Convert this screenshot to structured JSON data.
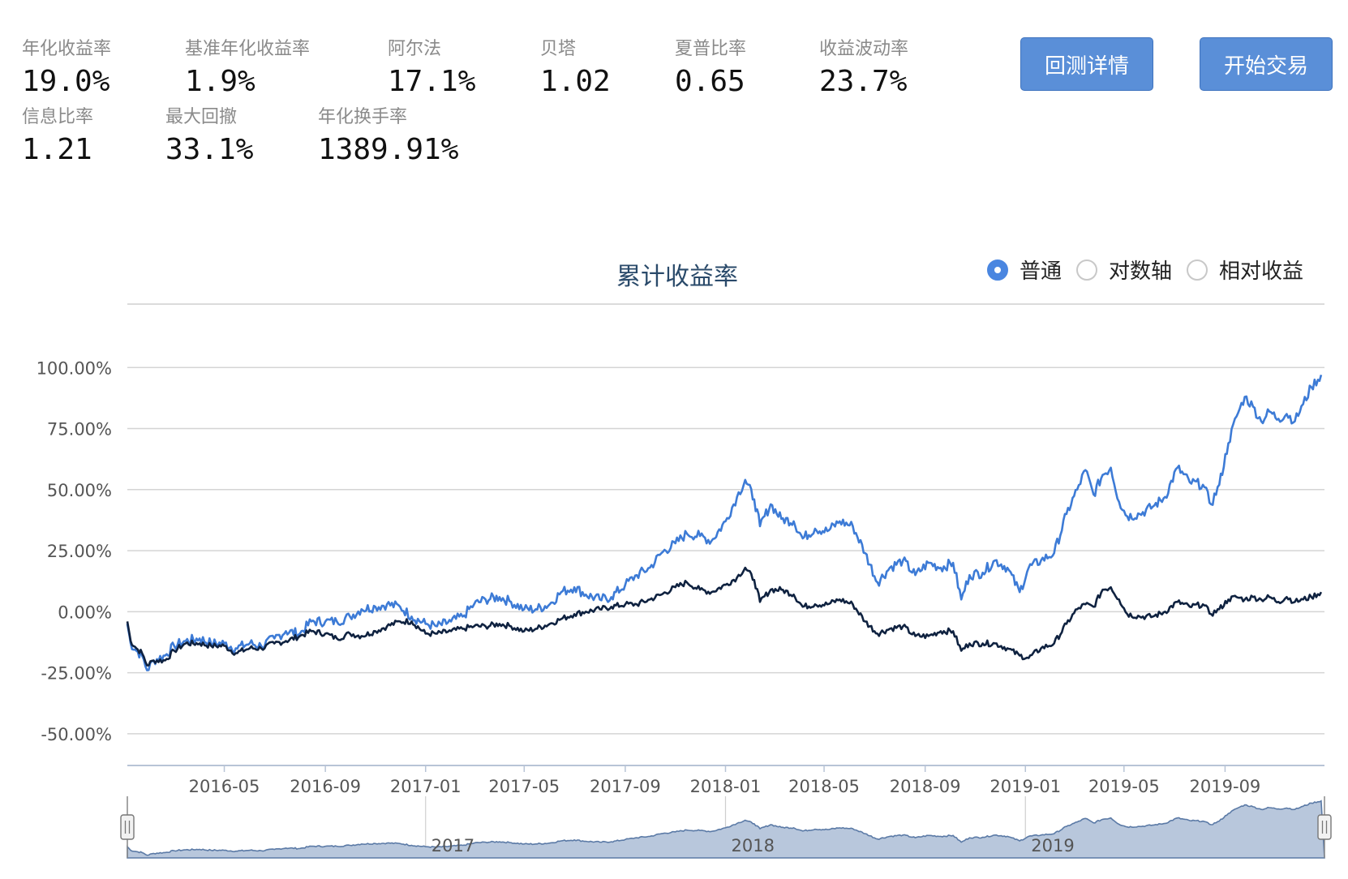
{
  "metrics_row1": [
    {
      "label": "年化收益率",
      "value": "19.0%"
    },
    {
      "label": "基准年化收益率",
      "value": "1.9%"
    },
    {
      "label": "阿尔法",
      "value": "17.1%"
    },
    {
      "label": "贝塔",
      "value": "1.02"
    },
    {
      "label": "夏普比率",
      "value": "0.65"
    },
    {
      "label": "收益波动率",
      "value": "23.7%"
    }
  ],
  "metrics_row2": [
    {
      "label": "信息比率",
      "value": "1.21"
    },
    {
      "label": "最大回撤",
      "value": "33.1%"
    },
    {
      "label": "年化换手率",
      "value": "1389.91%"
    }
  ],
  "buttons": {
    "backtest_details": "回测详情",
    "start_trading": "开始交易"
  },
  "scale_options": [
    {
      "label": "普通",
      "checked": true
    },
    {
      "label": "对数轴",
      "checked": false
    },
    {
      "label": "相对收益",
      "checked": false
    }
  ],
  "colors": {
    "strategy": "#3d7bd6",
    "benchmark": "#0f2240",
    "grid": "#d4d4d4",
    "navigator_fill": "#b8c7dc",
    "navigator_line": "#5b7aa6"
  },
  "chart_data": {
    "type": "line",
    "title": "累计收益率",
    "y_ticks": [
      "100.00%",
      "75.00%",
      "50.00%",
      "25.00%",
      "0.00%",
      "-25.00%",
      "-50.00%"
    ],
    "y_tick_values": [
      100,
      75,
      50,
      25,
      0,
      -25,
      -50
    ],
    "ylim": [
      -63,
      126
    ],
    "x_ticks": [
      {
        "label": "2016-05",
        "date": "2016-05-01"
      },
      {
        "label": "2016-09",
        "date": "2016-09-01"
      },
      {
        "label": "2017-01",
        "date": "2017-01-01"
      },
      {
        "label": "2017-05",
        "date": "2017-05-01"
      },
      {
        "label": "2017-09",
        "date": "2017-09-01"
      },
      {
        "label": "2018-01",
        "date": "2018-01-01"
      },
      {
        "label": "2018-05",
        "date": "2018-05-01"
      },
      {
        "label": "2018-09",
        "date": "2018-09-01"
      },
      {
        "label": "2019-01",
        "date": "2019-01-01"
      },
      {
        "label": "2019-05",
        "date": "2019-05-01"
      },
      {
        "label": "2019-09",
        "date": "2019-09-01"
      }
    ],
    "navigator_ticks": [
      {
        "label": "2017",
        "date": "2017-01-01"
      },
      {
        "label": "2018",
        "date": "2018-01-01"
      },
      {
        "label": "2019",
        "date": "2019-01-01"
      }
    ],
    "series": [
      {
        "color_key": "strategy",
        "points": [
          [
            "2016-01-04",
            -5
          ],
          [
            "2016-01-08",
            -13
          ],
          [
            "2016-01-15",
            -16
          ],
          [
            "2016-01-22",
            -18
          ],
          [
            "2016-01-28",
            -24
          ],
          [
            "2016-02-05",
            -20
          ],
          [
            "2016-02-19",
            -18
          ],
          [
            "2016-03-01",
            -14
          ],
          [
            "2016-03-15",
            -12
          ],
          [
            "2016-04-01",
            -11
          ],
          [
            "2016-04-15",
            -13
          ],
          [
            "2016-05-01",
            -13
          ],
          [
            "2016-05-15",
            -15
          ],
          [
            "2016-06-01",
            -13
          ],
          [
            "2016-06-15",
            -14
          ],
          [
            "2016-07-01",
            -11
          ],
          [
            "2016-07-15",
            -8
          ],
          [
            "2016-08-01",
            -9
          ],
          [
            "2016-08-15",
            -4
          ],
          [
            "2016-09-01",
            -4
          ],
          [
            "2016-09-15",
            -4
          ],
          [
            "2016-10-01",
            -2
          ],
          [
            "2016-10-15",
            1
          ],
          [
            "2016-11-01",
            2
          ],
          [
            "2016-11-15",
            3
          ],
          [
            "2016-12-01",
            2
          ],
          [
            "2016-12-15",
            -2
          ],
          [
            "2017-01-01",
            -5
          ],
          [
            "2017-01-15",
            -6
          ],
          [
            "2017-02-01",
            -4
          ],
          [
            "2017-02-15",
            -2
          ],
          [
            "2017-03-01",
            3
          ],
          [
            "2017-03-15",
            5
          ],
          [
            "2017-04-01",
            6
          ],
          [
            "2017-04-15",
            4
          ],
          [
            "2017-05-01",
            1
          ],
          [
            "2017-05-15",
            1
          ],
          [
            "2017-06-01",
            3
          ],
          [
            "2017-06-15",
            8
          ],
          [
            "2017-07-01",
            10
          ],
          [
            "2017-07-15",
            7
          ],
          [
            "2017-08-01",
            5
          ],
          [
            "2017-08-15",
            6
          ],
          [
            "2017-09-01",
            11
          ],
          [
            "2017-09-15",
            15
          ],
          [
            "2017-10-01",
            18
          ],
          [
            "2017-10-15",
            24
          ],
          [
            "2017-11-01",
            28
          ],
          [
            "2017-11-15",
            32
          ],
          [
            "2017-12-01",
            31
          ],
          [
            "2017-12-15",
            29
          ],
          [
            "2018-01-01",
            37
          ],
          [
            "2018-01-15",
            47
          ],
          [
            "2018-01-25",
            54
          ],
          [
            "2018-02-05",
            46
          ],
          [
            "2018-02-12",
            35
          ],
          [
            "2018-02-25",
            44
          ],
          [
            "2018-03-10",
            38
          ],
          [
            "2018-03-25",
            37
          ],
          [
            "2018-04-05",
            30
          ],
          [
            "2018-04-20",
            34
          ],
          [
            "2018-05-05",
            33
          ],
          [
            "2018-05-20",
            37
          ],
          [
            "2018-06-05",
            35
          ],
          [
            "2018-06-20",
            24
          ],
          [
            "2018-07-05",
            12
          ],
          [
            "2018-07-20",
            18
          ],
          [
            "2018-08-05",
            21
          ],
          [
            "2018-08-20",
            15
          ],
          [
            "2018-09-05",
            20
          ],
          [
            "2018-09-20",
            18
          ],
          [
            "2018-10-05",
            20
          ],
          [
            "2018-10-15",
            5
          ],
          [
            "2018-10-25",
            15
          ],
          [
            "2018-11-10",
            16
          ],
          [
            "2018-11-25",
            21
          ],
          [
            "2018-12-10",
            18
          ],
          [
            "2018-12-25",
            8
          ],
          [
            "2019-01-05",
            18
          ],
          [
            "2019-01-20",
            21
          ],
          [
            "2019-02-05",
            24
          ],
          [
            "2019-02-20",
            40
          ],
          [
            "2019-03-05",
            50
          ],
          [
            "2019-03-15",
            58
          ],
          [
            "2019-03-25",
            48
          ],
          [
            "2019-04-05",
            56
          ],
          [
            "2019-04-15",
            59
          ],
          [
            "2019-04-25",
            45
          ],
          [
            "2019-05-05",
            39
          ],
          [
            "2019-05-20",
            40
          ],
          [
            "2019-06-05",
            43
          ],
          [
            "2019-06-20",
            47
          ],
          [
            "2019-07-05",
            59
          ],
          [
            "2019-07-20",
            53
          ],
          [
            "2019-08-05",
            52
          ],
          [
            "2019-08-15",
            44
          ],
          [
            "2019-08-25",
            52
          ],
          [
            "2019-09-05",
            69
          ],
          [
            "2019-09-15",
            80
          ],
          [
            "2019-09-25",
            88
          ],
          [
            "2019-10-05",
            84
          ],
          [
            "2019-10-15",
            78
          ],
          [
            "2019-10-25",
            82
          ],
          [
            "2019-11-05",
            79
          ],
          [
            "2019-11-15",
            81
          ],
          [
            "2019-11-25",
            78
          ],
          [
            "2019-12-05",
            85
          ],
          [
            "2019-12-15",
            92
          ],
          [
            "2019-12-27",
            97
          ]
        ]
      },
      {
        "color_key": "benchmark",
        "points": [
          [
            "2016-01-04",
            -4
          ],
          [
            "2016-01-08",
            -12
          ],
          [
            "2016-01-15",
            -15
          ],
          [
            "2016-01-22",
            -17
          ],
          [
            "2016-01-28",
            -22
          ],
          [
            "2016-02-05",
            -20
          ],
          [
            "2016-02-19",
            -20
          ],
          [
            "2016-03-01",
            -16
          ],
          [
            "2016-03-15",
            -13
          ],
          [
            "2016-04-01",
            -13
          ],
          [
            "2016-04-15",
            -14
          ],
          [
            "2016-05-01",
            -14
          ],
          [
            "2016-05-15",
            -17
          ],
          [
            "2016-06-01",
            -15
          ],
          [
            "2016-06-15",
            -15
          ],
          [
            "2016-07-01",
            -13
          ],
          [
            "2016-07-15",
            -12
          ],
          [
            "2016-08-01",
            -10
          ],
          [
            "2016-08-15",
            -8
          ],
          [
            "2016-09-01",
            -9
          ],
          [
            "2016-09-15",
            -11
          ],
          [
            "2016-10-01",
            -9
          ],
          [
            "2016-10-15",
            -10
          ],
          [
            "2016-11-01",
            -8
          ],
          [
            "2016-11-15",
            -6
          ],
          [
            "2016-12-01",
            -4
          ],
          [
            "2016-12-15",
            -4
          ],
          [
            "2017-01-01",
            -9
          ],
          [
            "2017-01-15",
            -9
          ],
          [
            "2017-02-01",
            -8
          ],
          [
            "2017-02-15",
            -7
          ],
          [
            "2017-03-01",
            -6
          ],
          [
            "2017-03-15",
            -6
          ],
          [
            "2017-04-01",
            -5
          ],
          [
            "2017-04-15",
            -6
          ],
          [
            "2017-05-01",
            -8
          ],
          [
            "2017-05-15",
            -7
          ],
          [
            "2017-06-01",
            -5
          ],
          [
            "2017-06-15",
            -3
          ],
          [
            "2017-07-01",
            -1
          ],
          [
            "2017-07-15",
            0
          ],
          [
            "2017-08-01",
            1
          ],
          [
            "2017-08-15",
            2
          ],
          [
            "2017-09-01",
            3
          ],
          [
            "2017-09-15",
            3
          ],
          [
            "2017-10-01",
            5
          ],
          [
            "2017-10-15",
            7
          ],
          [
            "2017-11-01",
            10
          ],
          [
            "2017-11-15",
            12
          ],
          [
            "2017-12-01",
            9
          ],
          [
            "2017-12-15",
            8
          ],
          [
            "2018-01-01",
            11
          ],
          [
            "2018-01-15",
            14
          ],
          [
            "2018-01-25",
            18
          ],
          [
            "2018-02-05",
            13
          ],
          [
            "2018-02-12",
            4
          ],
          [
            "2018-02-25",
            9
          ],
          [
            "2018-03-10",
            9
          ],
          [
            "2018-03-25",
            7
          ],
          [
            "2018-04-05",
            2
          ],
          [
            "2018-04-20",
            3
          ],
          [
            "2018-05-05",
            3
          ],
          [
            "2018-05-20",
            5
          ],
          [
            "2018-06-05",
            3
          ],
          [
            "2018-06-20",
            -4
          ],
          [
            "2018-07-05",
            -9
          ],
          [
            "2018-07-20",
            -7
          ],
          [
            "2018-08-05",
            -6
          ],
          [
            "2018-08-20",
            -10
          ],
          [
            "2018-09-05",
            -10
          ],
          [
            "2018-09-20",
            -8
          ],
          [
            "2018-10-05",
            -8
          ],
          [
            "2018-10-15",
            -16
          ],
          [
            "2018-10-25",
            -13
          ],
          [
            "2018-11-10",
            -13
          ],
          [
            "2018-11-25",
            -13
          ],
          [
            "2018-12-10",
            -15
          ],
          [
            "2018-12-25",
            -18
          ],
          [
            "2019-01-05",
            -19
          ],
          [
            "2019-01-20",
            -15
          ],
          [
            "2019-02-05",
            -13
          ],
          [
            "2019-02-20",
            -5
          ],
          [
            "2019-03-05",
            1
          ],
          [
            "2019-03-15",
            3
          ],
          [
            "2019-03-25",
            2
          ],
          [
            "2019-04-05",
            9
          ],
          [
            "2019-04-15",
            10
          ],
          [
            "2019-04-25",
            5
          ],
          [
            "2019-05-05",
            -1
          ],
          [
            "2019-05-20",
            -2
          ],
          [
            "2019-06-05",
            -2
          ],
          [
            "2019-06-20",
            0
          ],
          [
            "2019-07-05",
            4
          ],
          [
            "2019-07-20",
            2
          ],
          [
            "2019-08-05",
            3
          ],
          [
            "2019-08-15",
            -1
          ],
          [
            "2019-08-25",
            1
          ],
          [
            "2019-09-05",
            5
          ],
          [
            "2019-09-15",
            6
          ],
          [
            "2019-09-25",
            5
          ],
          [
            "2019-10-05",
            6
          ],
          [
            "2019-10-15",
            5
          ],
          [
            "2019-10-25",
            6
          ],
          [
            "2019-11-05",
            4
          ],
          [
            "2019-11-15",
            6
          ],
          [
            "2019-11-25",
            4
          ],
          [
            "2019-12-05",
            5
          ],
          [
            "2019-12-15",
            6
          ],
          [
            "2019-12-27",
            8
          ]
        ]
      }
    ]
  }
}
